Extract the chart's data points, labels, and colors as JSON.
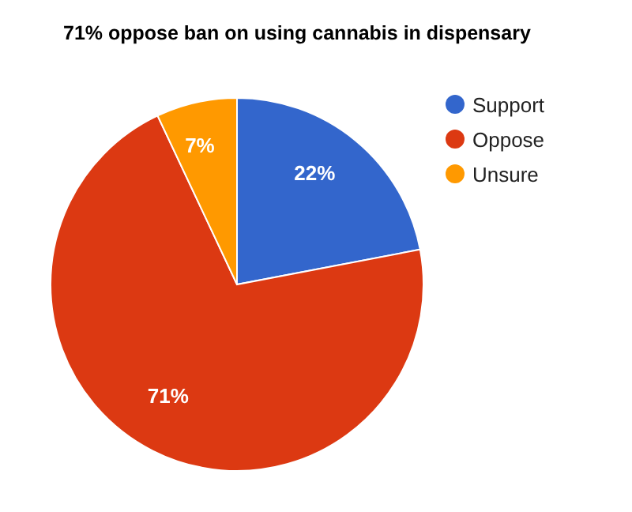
{
  "chart_data": {
    "type": "pie",
    "title": "71% oppose ban on using cannabis in dispensary",
    "categories": [
      "Support",
      "Oppose",
      "Unsure"
    ],
    "values": [
      22,
      71,
      7
    ],
    "colors": [
      "#3366cc",
      "#dc3912",
      "#ff9900"
    ],
    "value_labels": [
      "22%",
      "71%",
      "7%"
    ],
    "legend": "right"
  }
}
